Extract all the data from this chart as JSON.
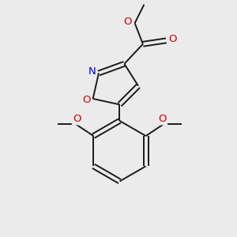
{
  "background_color": "#ebebeb",
  "bond_color": "#1a1a1a",
  "atom_colors": {
    "O": "#cc0000",
    "N": "#0000cc",
    "C": "#1a1a1a"
  },
  "font_size": 9.5,
  "figsize": [
    3.0,
    3.0
  ],
  "dpi": 100
}
